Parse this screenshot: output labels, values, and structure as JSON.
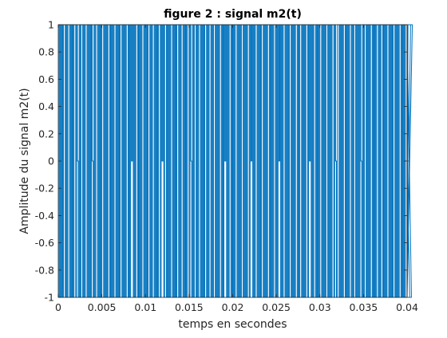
{
  "chart_data": {
    "type": "line",
    "title": "figure 2 : signal m2(t)",
    "xlabel": "temps en secondes",
    "ylabel": "Amplitude du signal m2(t)",
    "xlim": [
      0,
      0.04
    ],
    "ylim": [
      -1,
      1
    ],
    "x_ticks": [
      "0",
      "0.005",
      "0.01",
      "0.015",
      "0.02",
      "0.025",
      "0.03",
      "0.035",
      "0.04"
    ],
    "y_ticks": [
      "-1",
      "-0.8",
      "-0.6",
      "-0.4",
      "-0.2",
      "0",
      "0.2",
      "0.4",
      "0.6",
      "0.8",
      "1"
    ],
    "grid": false,
    "series": [
      {
        "color": "#0072BD",
        "sample_period": 0.0001,
        "levels": [
          1,
          -1,
          1,
          -1,
          1,
          -1,
          1,
          1,
          -1,
          1,
          -1,
          1,
          1,
          -1,
          1,
          -1,
          1,
          -1,
          1,
          1,
          -1,
          1,
          0,
          -1,
          1,
          -1,
          1,
          1,
          -1,
          1,
          -1,
          1,
          1,
          -1,
          1,
          -1,
          1,
          -1,
          1,
          0,
          -1,
          1,
          -1,
          1,
          1,
          -1,
          1,
          -1,
          1,
          -1,
          1,
          1,
          -1,
          1,
          -1,
          1,
          -1,
          1,
          1,
          -1,
          1,
          -1,
          1,
          -1,
          1,
          1,
          -1,
          1,
          -1,
          1,
          -1,
          1,
          1,
          -1,
          1,
          -1,
          1,
          -1,
          1,
          1,
          -1,
          1,
          -1,
          1,
          0,
          1,
          -1,
          1,
          -1,
          1,
          1,
          -1,
          1,
          -1,
          1,
          -1,
          1,
          1,
          -1,
          1,
          -1,
          1,
          -1,
          1,
          1,
          -1,
          1,
          -1,
          1,
          1,
          -1,
          1,
          -1,
          1,
          -1,
          1,
          1,
          -1,
          1,
          0,
          1,
          -1,
          1,
          1,
          -1,
          1,
          -1,
          1,
          -1,
          1,
          1,
          -1,
          1,
          -1,
          1,
          -1,
          1,
          1,
          -1,
          1,
          -1,
          1,
          1,
          -1,
          1,
          -1,
          1,
          -1,
          1,
          1,
          -1,
          1,
          0,
          -1,
          1,
          -1,
          1,
          1,
          -1,
          1,
          -1,
          1,
          1,
          -1,
          1,
          -1,
          1,
          -1,
          1,
          1,
          -1,
          1,
          -1,
          1,
          1,
          -1,
          1,
          -1,
          1,
          1,
          -1,
          1,
          -1,
          1,
          -1,
          1,
          1,
          -1,
          1,
          -1,
          1,
          0,
          1,
          -1,
          1,
          -1,
          1,
          1,
          -1,
          1,
          -1,
          1,
          -1,
          1,
          1,
          -1,
          1,
          -1,
          1,
          -1,
          1,
          1,
          -1,
          1,
          -1,
          1,
          -1,
          1,
          1,
          -1,
          1,
          0,
          1,
          -1,
          1,
          -1,
          1,
          1,
          -1,
          1,
          -1,
          1,
          -1,
          1,
          1,
          -1,
          1,
          -1,
          1,
          -1,
          1,
          1,
          -1,
          1,
          -1,
          1,
          -1,
          1,
          1,
          -1,
          1,
          -1,
          1,
          0,
          1,
          -1,
          1,
          -1,
          1,
          1,
          -1,
          1,
          -1,
          1,
          -1,
          1,
          1,
          -1,
          1,
          -1,
          1,
          -1,
          1,
          1,
          -1,
          1,
          -1,
          1,
          1,
          -1,
          1,
          -1,
          1,
          -1,
          1,
          1,
          -1,
          1,
          0,
          1,
          -1,
          1,
          -1,
          1,
          1,
          -1,
          1,
          -1,
          1,
          -1,
          1,
          1,
          -1,
          1,
          -1,
          1,
          -1,
          1,
          1,
          -1,
          1,
          -1,
          1,
          -1,
          1,
          1,
          -1,
          1,
          0,
          -1,
          1,
          1,
          -1,
          1,
          -1,
          1,
          -1,
          1,
          1,
          -1,
          1,
          -1,
          1,
          -1,
          1,
          1,
          -1,
          1,
          -1,
          1,
          1,
          -1,
          1,
          -1,
          1,
          -1,
          1,
          0,
          -1,
          1,
          -1,
          1,
          1,
          -1,
          1,
          -1,
          1,
          -1,
          1,
          1,
          -1,
          1,
          -1,
          1,
          -1,
          1,
          1,
          -1,
          1,
          -1,
          1,
          1,
          -1,
          1,
          -1,
          1,
          -1,
          1,
          1,
          -1,
          1,
          -1,
          1,
          -1,
          1,
          1,
          -1,
          1,
          -1,
          1,
          -1,
          1,
          1,
          -1,
          1,
          -1,
          1,
          -1,
          1,
          1,
          -1,
          1,
          0,
          -1,
          1,
          -1,
          1
        ]
      }
    ]
  }
}
